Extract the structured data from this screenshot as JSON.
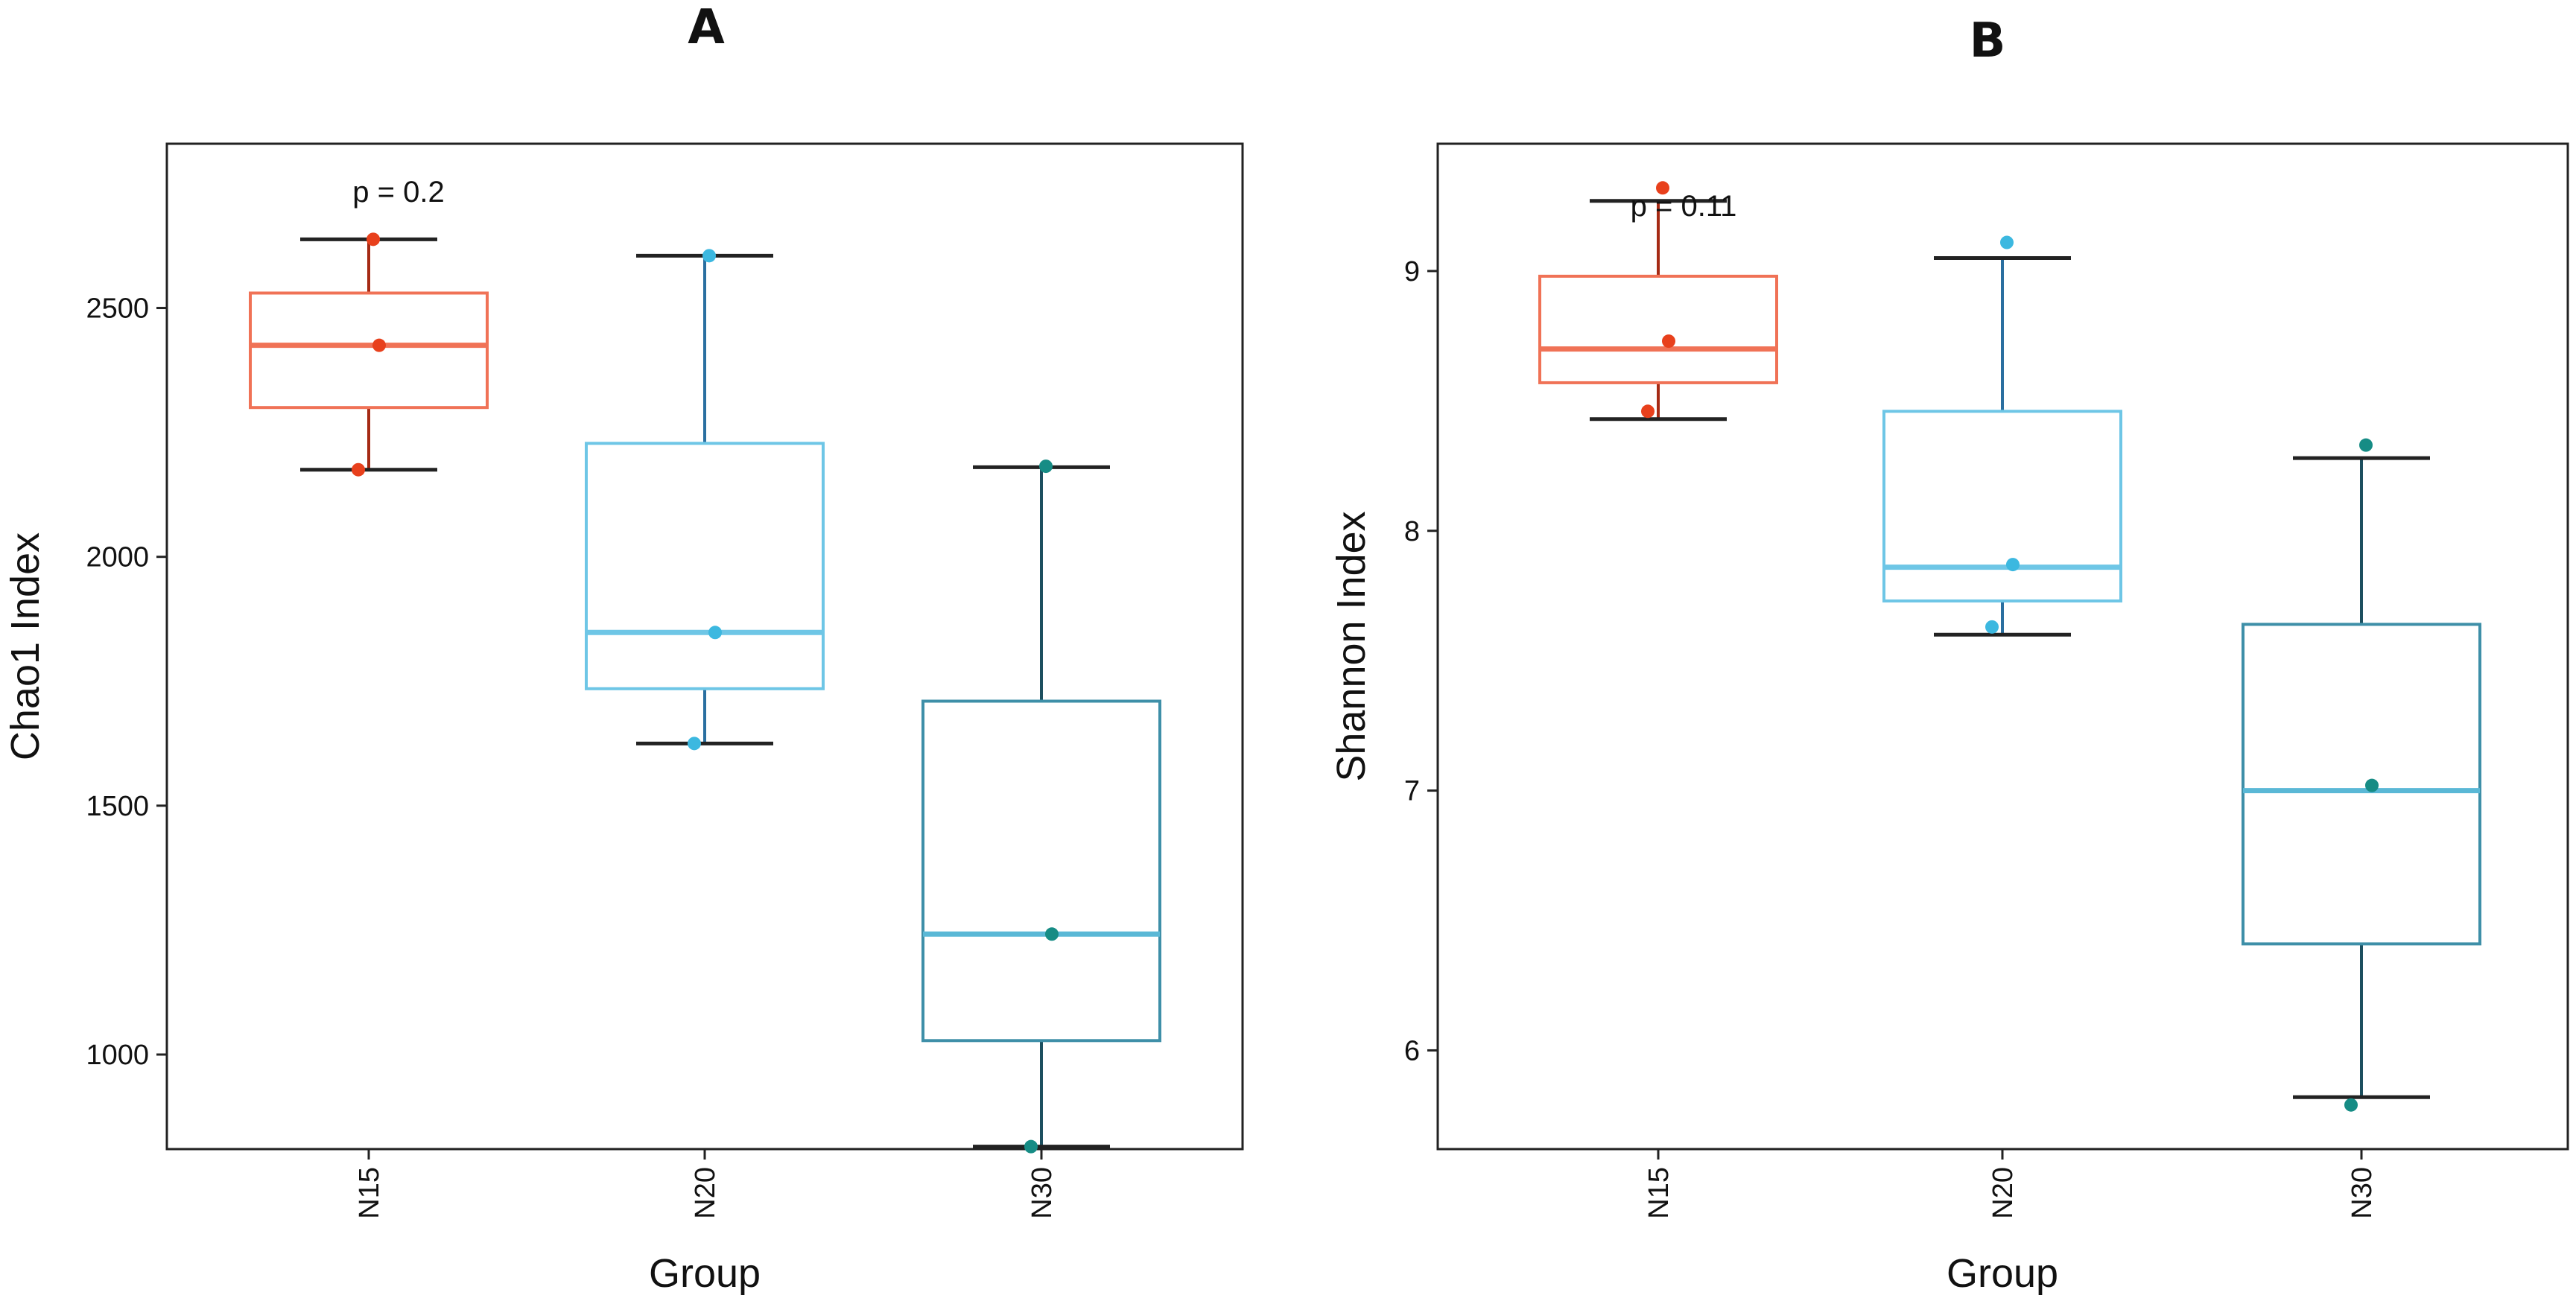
{
  "figure": {
    "panel_labels": [
      "A",
      "B"
    ]
  },
  "chart_data": [
    {
      "type": "box",
      "panel": "A",
      "title": "",
      "xlabel": "Group",
      "ylabel": "Chao1  Index",
      "categories": [
        "N15",
        "N20",
        "N30"
      ],
      "ylim": [
        810,
        2830
      ],
      "yticks": [
        1000,
        1500,
        2000,
        2500
      ],
      "annotation": "p = 0.2",
      "boxes": [
        {
          "name": "N15",
          "whisker_low": 2175,
          "q1": 2300,
          "median": 2425,
          "q3": 2530,
          "whisker_high": 2638,
          "points": [
            2175,
            2425,
            2638
          ],
          "box_color": "#f07256",
          "whisker_color": "#a52a14",
          "point_color": "#e8401c"
        },
        {
          "name": "N20",
          "whisker_low": 1625,
          "q1": 1735,
          "median": 1848,
          "q3": 2228,
          "whisker_high": 2605,
          "points": [
            1625,
            1848,
            2605
          ],
          "box_color": "#6ec6e6",
          "whisker_color": "#2a6fa0",
          "point_color": "#3cb8e0"
        },
        {
          "name": "N30",
          "whisker_low": 815,
          "q1": 1028,
          "median": 1242,
          "q3": 1710,
          "whisker_high": 2180,
          "points": [
            815,
            1242,
            2182
          ],
          "box_color": "#3e8fa8",
          "whisker_color": "#1d4f5f",
          "point_color": "#168c85"
        }
      ]
    },
    {
      "type": "box",
      "panel": "B",
      "title": "",
      "xlabel": "Group",
      "ylabel": "Shannon  Index",
      "categories": [
        "N15",
        "N20",
        "N30"
      ],
      "ylim": [
        5.62,
        9.49
      ],
      "yticks": [
        6,
        7,
        8,
        9
      ],
      "annotation": "p = 0.11",
      "boxes": [
        {
          "name": "N15",
          "whisker_low": 8.43,
          "q1": 8.57,
          "median": 8.7,
          "q3": 8.98,
          "whisker_high": 9.27,
          "points": [
            8.46,
            8.73,
            9.32
          ],
          "box_color": "#f07256",
          "whisker_color": "#a52a14",
          "point_color": "#e8401c"
        },
        {
          "name": "N20",
          "whisker_low": 7.6,
          "q1": 7.73,
          "median": 7.86,
          "q3": 8.46,
          "whisker_high": 9.05,
          "points": [
            7.63,
            7.87,
            9.11
          ],
          "box_color": "#6ec6e6",
          "whisker_color": "#2a6fa0",
          "point_color": "#3cb8e0"
        },
        {
          "name": "N30",
          "whisker_low": 5.82,
          "q1": 6.41,
          "median": 7.0,
          "q3": 7.64,
          "whisker_high": 8.28,
          "points": [
            5.79,
            7.02,
            8.33
          ],
          "box_color": "#3e8fa8",
          "whisker_color": "#1d4f5f",
          "point_color": "#168c85"
        }
      ]
    }
  ]
}
